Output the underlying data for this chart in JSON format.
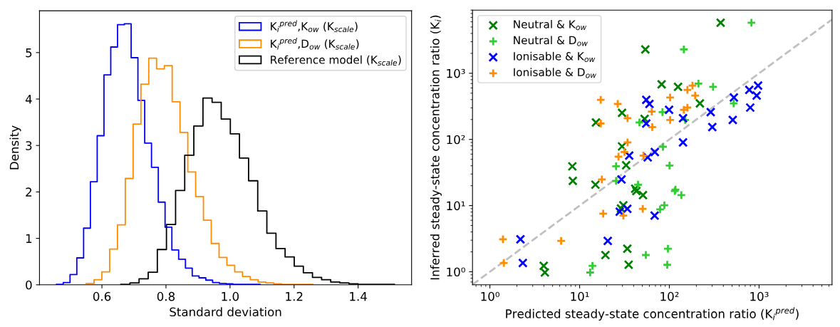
{
  "chart_data": [
    {
      "type": "step",
      "xlabel": "Standard deviation",
      "ylabel": "Density",
      "xlim": [
        0.405,
        1.567
      ],
      "ylim": [
        0,
        5.9
      ],
      "xticks": [
        {
          "value": 0.6,
          "label": "0.6"
        },
        {
          "value": 0.8,
          "label": "0.8"
        },
        {
          "value": 1.0,
          "label": "1.0"
        },
        {
          "value": 1.2,
          "label": "1.2"
        },
        {
          "value": 1.4,
          "label": "1.4"
        }
      ],
      "yticks": [
        0,
        1,
        2,
        3,
        4,
        5
      ],
      "grid": false,
      "legend": "top right",
      "series": [
        {
          "name": "K$_{i}$$^{pred}$,K$_{ow}$ (K$_{scale}$)",
          "color": "#0000ff",
          "x": [
            0.458,
            0.4792,
            0.5004,
            0.5216,
            0.5428,
            0.564,
            0.5852,
            0.6064,
            0.6276,
            0.6488,
            0.67,
            0.6912,
            0.7124,
            0.7336,
            0.7548,
            0.776,
            0.7972,
            0.8184,
            0.8396,
            0.8608,
            0.882,
            0.9032,
            0.9244,
            0.9456,
            0.9668,
            0.988,
            1.0092,
            1.0304,
            1.0516,
            1.0728,
            1.094
          ],
          "values": [
            0.01,
            0.05,
            0.22,
            0.58,
            1.22,
            2.22,
            3.21,
            4.52,
            5.12,
            5.6,
            5.62,
            4.89,
            3.97,
            3.05,
            2.53,
            1.78,
            1.24,
            0.75,
            0.55,
            0.36,
            0.19,
            0.15,
            0.1,
            0.05,
            0.03,
            0.02,
            0.01,
            0.01,
            0.01,
            0.01,
            0
          ]
        },
        {
          "name": "K$_{i}$$^{pred}$,D$_{ow}$ (K$_{scale}$)",
          "color": "#ff8c00",
          "x": [
            0.551,
            0.5754,
            0.5998,
            0.6242,
            0.6486,
            0.673,
            0.6974,
            0.7218,
            0.7462,
            0.7706,
            0.795,
            0.8194,
            0.8438,
            0.8682,
            0.8926,
            0.917,
            0.9414,
            0.9658,
            0.9902,
            1.0146,
            1.039,
            1.0634,
            1.0878,
            1.1122,
            1.1366,
            1.161,
            1.1854,
            1.2098,
            1.2342,
            1.2586
          ],
          "values": [
            0.03,
            0.11,
            0.28,
            0.77,
            1.29,
            2.29,
            3.46,
            4.32,
            4.88,
            4.65,
            4.72,
            3.94,
            3.28,
            2.43,
            1.9,
            1.39,
            0.89,
            0.59,
            0.42,
            0.28,
            0.18,
            0.11,
            0.06,
            0.04,
            0.02,
            0.01,
            0.01,
            0.01,
            0.01,
            0
          ]
        },
        {
          "name": "Reference model (K$_{scale}$)",
          "color": "#000000",
          "x": [
            0.659,
            0.6875,
            0.716,
            0.7445,
            0.773,
            0.8015,
            0.83,
            0.8585,
            0.887,
            0.9155,
            0.944,
            0.9725,
            1.001,
            1.0295,
            1.058,
            1.0865,
            1.115,
            1.1435,
            1.172,
            1.2005,
            1.229,
            1.2575,
            1.286,
            1.3145,
            1.343,
            1.3715,
            1.4,
            1.4285,
            1.457,
            1.4855,
            1.514
          ],
          "values": [
            0.01,
            0.04,
            0.13,
            0.27,
            0.76,
            1.3,
            2.03,
            2.79,
            3.42,
            4.02,
            3.93,
            3.57,
            3.25,
            2.73,
            2.24,
            1.59,
            1.11,
            0.78,
            0.6,
            0.4,
            0.26,
            0.16,
            0.11,
            0.06,
            0.04,
            0.02,
            0.01,
            0.01,
            0.01,
            0.01,
            0
          ]
        }
      ]
    },
    {
      "type": "scatter",
      "xlabel": "Predicted steady-state concentration ratio (K$_{i}$$^{pred}$)",
      "ylabel": "Inferred steady-state concentration ratio (K$_{i}$)",
      "log": "xy",
      "xlim": [
        0.64,
        6500
      ],
      "ylim": [
        0.635,
        9000
      ],
      "xticks": [
        {
          "value": 1,
          "label": "10⁰"
        },
        {
          "value": 10,
          "label": "10¹"
        },
        {
          "value": 100,
          "label": "10²"
        },
        {
          "value": 1000,
          "label": "10³"
        }
      ],
      "yticks": [
        {
          "value": 1,
          "label": "10⁰"
        },
        {
          "value": 10,
          "label": "10¹"
        },
        {
          "value": 100,
          "label": "10²"
        },
        {
          "value": 1000,
          "label": "10³"
        }
      ],
      "grid": false,
      "legend": "top left",
      "series": [
        {
          "type": "line",
          "color": "#c0c0c0",
          "line_style": "dashed",
          "marker": "none",
          "x": [
            0.64,
            6500
          ],
          "values": [
            0.64,
            6500
          ]
        },
        {
          "name": "Neutral & K$_{ow}$",
          "color": "#008000",
          "marker": "cross",
          "x": [
            8.3,
            8.4,
            15.2,
            15.0,
            29.7,
            29.7,
            33,
            373,
            54,
            82,
            125,
            219,
            53,
            28.9,
            30.7,
            41.6,
            42.9,
            50.8,
            19.4,
            3.98,
            4.1,
            34,
            35.2
          ],
          "values": [
            39.2,
            23.6,
            181,
            20.7,
            252,
            78.5,
            40.7,
            5800,
            2290,
            680,
            625,
            351,
            205,
            9.06,
            10.1,
            18,
            16.6,
            14.4,
            1.79,
            1.23,
            0.975,
            2.23,
            1.28
          ]
        },
        {
          "name": "Neutral & D$_{ow}$",
          "color": "#32cd32",
          "marker": "plus",
          "x": [
            25.5,
            25.5,
            822,
            145,
            211,
            307,
            521,
            83.8,
            46.4,
            84.9,
            100.5,
            44.8,
            117,
            115,
            136,
            88,
            78.8,
            54.7,
            96.4,
            94.7,
            13.9,
            13.1,
            150
          ],
          "values": [
            39.4,
            23.6,
            5800,
            2290,
            697,
            625,
            351,
            259,
            181,
            77.5,
            40.4,
            20.7,
            17.5,
            16.6,
            14.4,
            10.1,
            8.77,
            1.79,
            2.23,
            1.28,
            1.23,
            0.975,
            197
          ]
        },
        {
          "name": "Ionisable & K$_{ow}$",
          "color": "#0000ff",
          "marker": "cross",
          "x": [
            55.3,
            60,
            99.3,
            142,
            55.3,
            142,
            289,
            301,
            524,
            509,
            778,
            975,
            940,
            797,
            35.7,
            57.4,
            68.9,
            2.19,
            2.33,
            29.3,
            28,
            34,
            68.5,
            20.6
          ],
          "values": [
            397,
            345,
            281,
            210,
            174,
            90,
            259,
            154,
            431,
            197,
            562,
            652,
            461,
            303,
            57.1,
            53.5,
            64.7,
            3.1,
            1.36,
            24.8,
            8.09,
            8.93,
            7.07,
            2.93
          ]
        },
        {
          "name": "Ionisable & D$_{ow}$",
          "color": "#ff8c00",
          "marker": "plus",
          "x": [
            17.2,
            26.6,
            17.2,
            34.2,
            63.7,
            64.5,
            102,
            102,
            159,
            181,
            194,
            145,
            159,
            34.2,
            31.6,
            27.1,
            51.4,
            17.7,
            18.3,
            1.4,
            1.43,
            6.22,
            30.7,
            50.5
          ],
          "values": [
            397,
            345,
            174,
            210,
            263,
            154,
            431,
            197,
            562,
            652,
            461,
            281,
            303,
            90,
            64.7,
            54.8,
            57.1,
            24.8,
            7.56,
            3.1,
            1.36,
            2.93,
            7.07,
            8.93
          ]
        }
      ]
    }
  ]
}
